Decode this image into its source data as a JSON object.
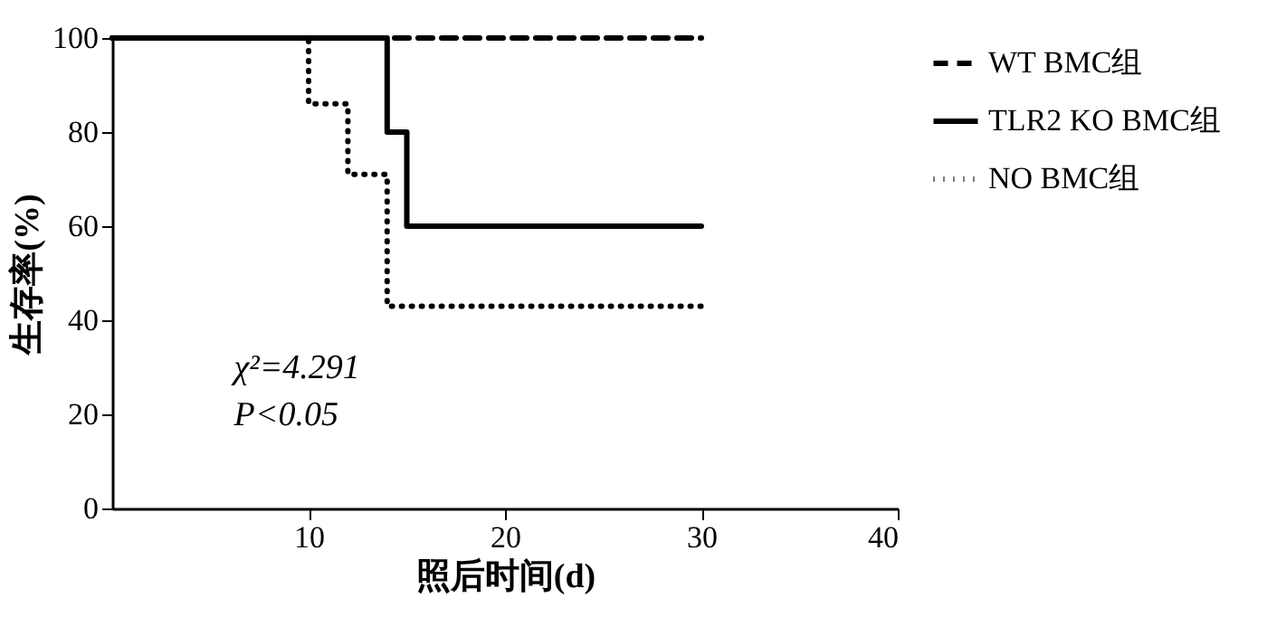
{
  "chart_data": {
    "type": "step",
    "xlabel": "照后时间(d)",
    "ylabel": "生存率(%)",
    "xlim": [
      0,
      40
    ],
    "xticks": [
      10,
      20,
      30,
      40
    ],
    "ylim": [
      0,
      100
    ],
    "yticks": [
      0,
      20,
      40,
      60,
      80,
      100
    ],
    "grid": false,
    "legend": "top right",
    "marker": "none",
    "series": [
      {
        "name": "WT BMC组",
        "color": "#000000",
        "line_style": "dashed",
        "x": [
          0,
          30
        ],
        "values": [
          100,
          100
        ]
      },
      {
        "name": "TLR2 KO BMC组",
        "color": "#000000",
        "line_style": "solid",
        "x": [
          0,
          14,
          15,
          30
        ],
        "values": [
          100,
          80,
          60,
          60
        ]
      },
      {
        "name": "NO BMC组",
        "color": "#000000",
        "line_style": "dotted",
        "x": [
          0,
          10,
          12,
          14,
          30
        ],
        "values": [
          100,
          86,
          71,
          43,
          43
        ]
      }
    ],
    "annotations": [
      "χ²=4.291",
      "P<0.05"
    ]
  }
}
